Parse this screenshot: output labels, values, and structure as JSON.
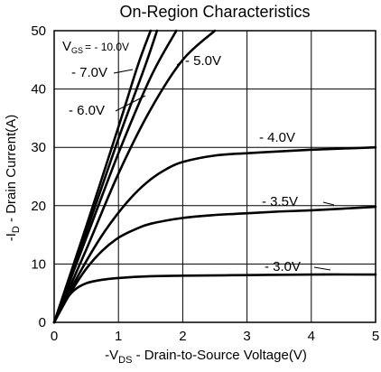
{
  "chart_data": {
    "type": "line",
    "title": "On-Region Characteristics",
    "xlabel": {
      "prefix": "-V",
      "sub": "DS",
      "suffix": " - Drain-to-Source Voltage(V)"
    },
    "ylabel": {
      "prefix": "-I",
      "sub": "D",
      "suffix": " - Drain Current(A)"
    },
    "xlim": [
      0,
      5
    ],
    "ylim": [
      0,
      50
    ],
    "xticks": [
      "0",
      "1",
      "2",
      "3",
      "4",
      "5"
    ],
    "yticks": [
      "0",
      "10",
      "20",
      "30",
      "40",
      "50"
    ],
    "grid": true,
    "series": [
      {
        "name": "- 10.0V",
        "label_prefix": "V",
        "label_sub": "GS",
        "label_rest": "= - 10.0V",
        "x": [
          0,
          0.5,
          1.0,
          1.3,
          1.5
        ],
        "y": [
          0,
          16.5,
          33.5,
          44,
          50
        ]
      },
      {
        "name": "- 7.0V",
        "x": [
          0,
          0.5,
          1.0,
          1.4,
          1.6
        ],
        "y": [
          0,
          15.5,
          31.5,
          43.5,
          50
        ]
      },
      {
        "name": "- 6.0V",
        "x": [
          0,
          0.5,
          1.0,
          1.5,
          1.9
        ],
        "y": [
          0,
          14.5,
          29,
          42,
          50
        ]
      },
      {
        "name": "- 5.0V",
        "x": [
          0,
          0.5,
          1.0,
          1.5,
          2.0,
          2.5
        ],
        "y": [
          0,
          12.5,
          25.5,
          36.5,
          45,
          50
        ]
      },
      {
        "name": "- 4.0V",
        "x": [
          0,
          0.25,
          0.5,
          0.75,
          1.0,
          1.25,
          1.5,
          1.75,
          2.0,
          2.5,
          3.0,
          3.5,
          4.0,
          4.5,
          5.0
        ],
        "y": [
          0,
          5.5,
          10.5,
          15,
          18.8,
          22,
          24.5,
          26.3,
          27.5,
          28.6,
          29.0,
          29.3,
          29.6,
          29.8,
          30.0
        ]
      },
      {
        "name": "- 3.5V",
        "x": [
          0,
          0.25,
          0.5,
          0.75,
          1.0,
          1.25,
          1.5,
          2.0,
          2.5,
          3.0,
          3.5,
          4.0,
          4.5,
          5.0
        ],
        "y": [
          0,
          5,
          9.2,
          12.3,
          14.5,
          15.9,
          16.9,
          17.9,
          18.4,
          18.7,
          19.0,
          19.2,
          19.5,
          19.8
        ]
      },
      {
        "name": "- 3.0V",
        "x": [
          0,
          0.15,
          0.3,
          0.5,
          0.75,
          1.0,
          1.5,
          2.0,
          3.0,
          4.0,
          5.0
        ],
        "y": [
          0,
          3.3,
          5.4,
          6.7,
          7.3,
          7.6,
          7.9,
          8.0,
          8.1,
          8.2,
          8.2
        ]
      }
    ]
  }
}
